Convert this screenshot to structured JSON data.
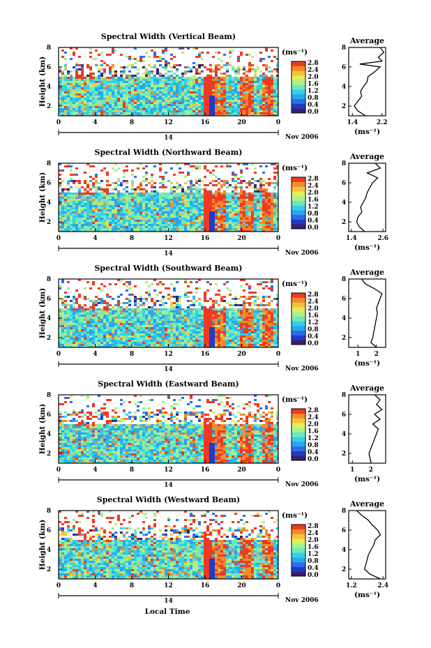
{
  "chart_data": [
    {
      "type": "heatmap",
      "title": "Spectral Width (Vertical Beam)",
      "ylabel": "Height (km)",
      "x_ticks": [
        "0",
        "4",
        "8",
        "12",
        "16",
        "20",
        "0"
      ],
      "y_ticks": [
        "2",
        "4",
        "6",
        "8"
      ],
      "day_label": "14",
      "date_label": "Nov 2006",
      "xlim": [
        0,
        24
      ],
      "ylim": [
        1,
        8
      ],
      "colorbar": {
        "unit": "(ms⁻¹)",
        "ticks": [
          "0.0",
          "0.4",
          "0.8",
          "1.2",
          "1.6",
          "2.0",
          "2.4",
          "2.8"
        ]
      },
      "profile": {
        "title": "Average",
        "x_ticks": [
          "1.4",
          "2.2"
        ],
        "xlim": [
          1.3,
          2.3
        ],
        "xlabel": "(ms⁻¹)",
        "heights": [
          1.0,
          1.5,
          2.0,
          2.5,
          3.0,
          3.5,
          4.0,
          4.5,
          5.0,
          5.5,
          6.0,
          6.3,
          6.6,
          7.0,
          7.5,
          8.0
        ],
        "values": [
          1.75,
          1.55,
          1.45,
          1.55,
          1.65,
          1.62,
          1.7,
          1.8,
          1.82,
          2.0,
          2.15,
          1.6,
          2.2,
          2.1,
          2.25,
          2.15
        ]
      }
    },
    {
      "type": "heatmap",
      "title": "Spectral Width (Northward Beam)",
      "ylabel": "Height (km)",
      "x_ticks": [
        "0",
        "4",
        "8",
        "12",
        "16",
        "20",
        "0"
      ],
      "y_ticks": [
        "2",
        "4",
        "6",
        "8"
      ],
      "day_label": "14",
      "date_label": "Nov 2006",
      "xlim": [
        0,
        24
      ],
      "ylim": [
        1,
        8
      ],
      "colorbar": {
        "unit": "(ms⁻¹)",
        "ticks": [
          "0.0",
          "0.4",
          "0.8",
          "1.2",
          "1.6",
          "2.0",
          "2.4",
          "2.8"
        ]
      },
      "profile": {
        "title": "Average",
        "x_ticks": [
          "1.4",
          "2.6"
        ],
        "xlim": [
          1.3,
          2.7
        ],
        "xlabel": "(ms⁻¹)",
        "heights": [
          1.0,
          1.5,
          2.0,
          2.5,
          3.0,
          3.5,
          4.0,
          4.5,
          5.0,
          5.5,
          6.0,
          6.5,
          7.0,
          7.5,
          8.0
        ],
        "values": [
          1.9,
          1.7,
          1.6,
          1.65,
          1.8,
          1.75,
          1.85,
          1.95,
          2.0,
          2.1,
          2.2,
          2.4,
          2.0,
          2.5,
          2.3
        ]
      }
    },
    {
      "type": "heatmap",
      "title": "Spectral Width (Southward Beam)",
      "ylabel": "Height (km)",
      "x_ticks": [
        "0",
        "4",
        "8",
        "12",
        "16",
        "20",
        "0"
      ],
      "y_ticks": [
        "2",
        "4",
        "6",
        "8"
      ],
      "day_label": "14",
      "date_label": "Nov 2006",
      "xlim": [
        0,
        24
      ],
      "ylim": [
        1,
        8
      ],
      "colorbar": {
        "unit": "(ms⁻¹)",
        "ticks": [
          "0.0",
          "0.4",
          "0.8",
          "1.2",
          "1.6",
          "2.0",
          "2.4",
          "2.8"
        ]
      },
      "profile": {
        "title": "Average",
        "x_ticks": [
          "1",
          "2"
        ],
        "xlim": [
          0.5,
          2.5
        ],
        "xlabel": "(ms⁻¹)",
        "heights": [
          1.0,
          1.5,
          2.0,
          2.5,
          3.0,
          3.5,
          4.0,
          4.5,
          5.0,
          5.5,
          6.0,
          6.5,
          7.0,
          7.5,
          8.0
        ],
        "values": [
          2.0,
          1.7,
          1.8,
          1.85,
          1.9,
          1.95,
          2.0,
          2.05,
          2.0,
          2.1,
          2.2,
          2.3,
          1.9,
          1.4,
          1.2
        ]
      }
    },
    {
      "type": "heatmap",
      "title": "Spectral Width (Eastward Beam)",
      "ylabel": "Height (km)",
      "x_ticks": [
        "0",
        "4",
        "8",
        "12",
        "16",
        "20",
        "0"
      ],
      "y_ticks": [
        "2",
        "4",
        "6",
        "8"
      ],
      "day_label": "14",
      "date_label": "Nov 2006",
      "xlim": [
        0,
        24
      ],
      "ylim": [
        1,
        8
      ],
      "colorbar": {
        "unit": "(ms⁻¹)",
        "ticks": [
          "0.0",
          "0.4",
          "0.8",
          "1.2",
          "1.6",
          "2.0",
          "2.4",
          "2.8"
        ]
      },
      "profile": {
        "title": "Average",
        "x_ticks": [
          "1",
          "2"
        ],
        "xlim": [
          0.8,
          2.8
        ],
        "xlabel": "(ms⁻¹)",
        "heights": [
          1.0,
          1.5,
          2.0,
          2.5,
          3.0,
          3.5,
          4.0,
          4.5,
          5.0,
          5.5,
          6.0,
          6.5,
          7.0,
          7.5,
          8.0
        ],
        "values": [
          2.0,
          1.95,
          1.9,
          2.0,
          2.1,
          2.2,
          2.3,
          2.4,
          2.1,
          2.5,
          2.2,
          2.6,
          2.3,
          2.5,
          2.2
        ]
      }
    },
    {
      "type": "heatmap",
      "title": "Spectral Width (Westward Beam)",
      "ylabel": "Height (km)",
      "x_ticks": [
        "0",
        "4",
        "8",
        "12",
        "16",
        "20",
        "0"
      ],
      "y_ticks": [
        "2",
        "4",
        "6",
        "8"
      ],
      "day_label": "14",
      "date_label": "Nov 2006",
      "xlim": [
        0,
        24
      ],
      "ylim": [
        1,
        8
      ],
      "colorbar": {
        "unit": "(ms⁻¹)",
        "ticks": [
          "0.0",
          "0.4",
          "0.8",
          "1.2",
          "1.6",
          "2.0",
          "2.4",
          "2.8"
        ]
      },
      "profile": {
        "title": "Average",
        "x_ticks": [
          "1.2",
          "2.4"
        ],
        "xlim": [
          1.1,
          2.5
        ],
        "xlabel": "(ms⁻¹)",
        "heights": [
          1.0,
          1.5,
          2.0,
          2.5,
          3.0,
          3.5,
          4.0,
          4.5,
          5.0,
          5.5,
          6.0,
          6.5,
          7.0,
          7.5,
          8.0
        ],
        "values": [
          2.3,
          1.9,
          1.7,
          1.75,
          1.8,
          1.85,
          1.95,
          2.05,
          2.1,
          2.3,
          2.2,
          2.0,
          1.85,
          1.6,
          1.4
        ]
      }
    }
  ],
  "xlabel": "Local Time",
  "colormap": [
    "#3a1f6e",
    "#1e3cc8",
    "#2b6fe8",
    "#2aa6f0",
    "#33d0e8",
    "#6fe6c0",
    "#a8f08a",
    "#e0ee5a",
    "#f5c23a",
    "#f58a2a",
    "#ee3a22"
  ]
}
